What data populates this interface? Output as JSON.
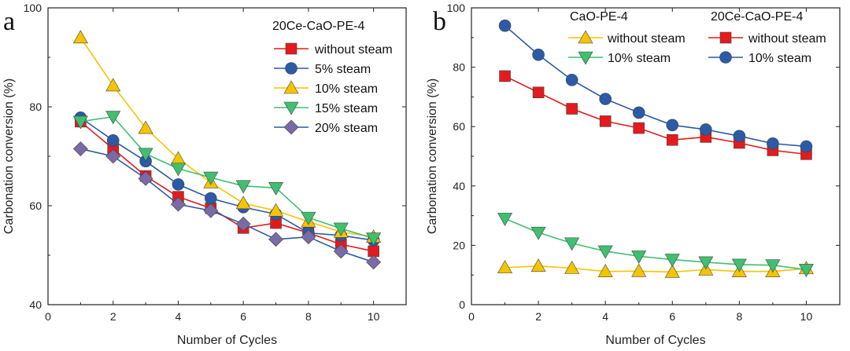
{
  "chart_data": [
    {
      "panel": "a",
      "type": "line",
      "xlabel": "Number of Cycles",
      "ylabel": "Carbonation conversion (%)",
      "xlim": [
        0,
        11
      ],
      "ylim": [
        40,
        100
      ],
      "xticks": [
        0,
        2,
        4,
        6,
        8,
        10
      ],
      "yticks": [
        40,
        60,
        80,
        100
      ],
      "legend_title": "20Ce-CaO-PE-4",
      "legend_position": "top-right",
      "x": [
        1,
        2,
        3,
        4,
        5,
        6,
        7,
        8,
        9,
        10
      ],
      "series": [
        {
          "name": "without steam",
          "color": "#e41a1c",
          "marker": "square",
          "line": "#e41a1c",
          "values": [
            77,
            71.5,
            66,
            61.8,
            59.5,
            55.5,
            56.5,
            54.5,
            52.2,
            50.8
          ]
        },
        {
          "name": "5% steam",
          "color": "#2b5aa6",
          "marker": "circle",
          "line": "#2b5aa6",
          "values": [
            77.8,
            73.2,
            69,
            64.3,
            61.5,
            59.7,
            58.3,
            54.5,
            54,
            53
          ]
        },
        {
          "name": "10% steam",
          "color": "#f5c400",
          "marker": "triangle-up",
          "line": "#f5c400",
          "values": [
            94,
            84.3,
            75.7,
            69.5,
            64.7,
            60.5,
            59,
            56.8,
            54.7,
            53.7
          ]
        },
        {
          "name": "15% steam",
          "color": "#3fbf6f",
          "marker": "triangle-down",
          "line": "#3fbf6f",
          "values": [
            77,
            78,
            70.5,
            67.5,
            65.7,
            64,
            63.6,
            57.6,
            55.4,
            53.4
          ]
        },
        {
          "name": "20% steam",
          "color": "#7b6aa8",
          "marker": "diamond",
          "line": "#2b5aa6",
          "values": [
            71.5,
            70,
            65.5,
            60.3,
            59,
            56.3,
            53.2,
            53.7,
            50.8,
            48.6
          ]
        }
      ]
    },
    {
      "panel": "b",
      "type": "line",
      "xlabel": "Number of Cycles",
      "ylabel": "Carbonation conversion (%)",
      "xlim": [
        0,
        11
      ],
      "ylim": [
        0,
        100
      ],
      "xticks": [
        0,
        2,
        4,
        6,
        8,
        10
      ],
      "yticks": [
        0,
        20,
        40,
        60,
        80,
        100
      ],
      "legend_groups": [
        "CaO-PE-4",
        "20Ce-CaO-PE-4"
      ],
      "legend_position": "top",
      "x": [
        1,
        2,
        3,
        4,
        5,
        6,
        7,
        8,
        9,
        10
      ],
      "series": [
        {
          "group": "CaO-PE-4",
          "name": "without steam",
          "color": "#f5c400",
          "marker": "triangle-up",
          "line": "#f5c400",
          "values": [
            12.5,
            13,
            12.3,
            11.2,
            11.3,
            11,
            11.8,
            11.2,
            11.2,
            12.2
          ]
        },
        {
          "group": "CaO-PE-4",
          "name": "10% steam",
          "color": "#3fbf6f",
          "marker": "triangle-down",
          "line": "#3fbf6f",
          "values": [
            29,
            24.3,
            20.7,
            18,
            16.3,
            15.2,
            14.3,
            13.5,
            13.3,
            11.8
          ]
        },
        {
          "group": "20Ce-CaO-PE-4",
          "name": "without steam",
          "color": "#e41a1c",
          "marker": "square",
          "line": "#e41a1c",
          "values": [
            77,
            71.5,
            66,
            61.8,
            59.5,
            55.5,
            56.5,
            54.5,
            52,
            50.7
          ]
        },
        {
          "group": "20Ce-CaO-PE-4",
          "name": "10% steam",
          "color": "#2b5aa6",
          "marker": "circle",
          "line": "#2b5aa6",
          "values": [
            94,
            84.2,
            75.7,
            69.3,
            64.7,
            60.5,
            59,
            56.8,
            54.3,
            53.3
          ]
        }
      ]
    }
  ]
}
